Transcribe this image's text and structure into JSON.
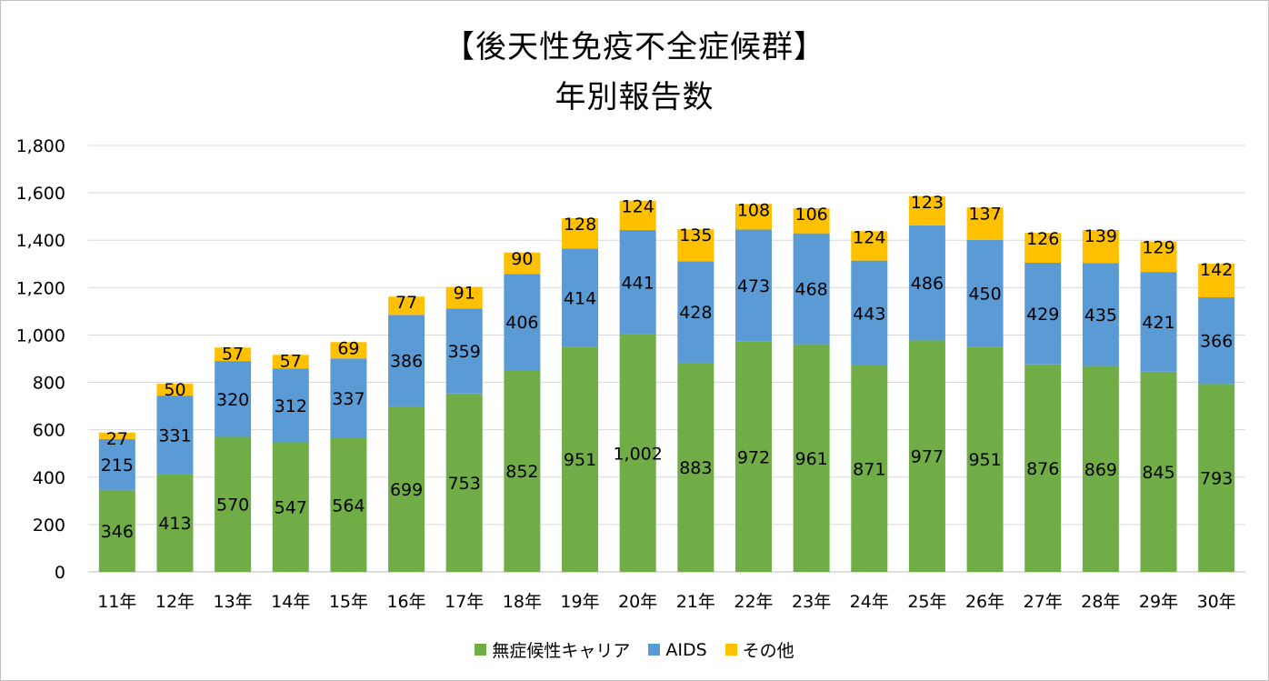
{
  "chart_data": {
    "type": "bar",
    "stacked": true,
    "title": [
      "【後天性免疫不全症候群】",
      "年別報告数"
    ],
    "categories": [
      "11年",
      "12年",
      "13年",
      "14年",
      "15年",
      "16年",
      "17年",
      "18年",
      "19年",
      "20年",
      "21年",
      "22年",
      "23年",
      "24年",
      "25年",
      "26年",
      "27年",
      "28年",
      "29年",
      "30年"
    ],
    "series": [
      {
        "name": "無症候性キャリア",
        "color": "#70ad47",
        "values": [
          346,
          413,
          570,
          547,
          564,
          699,
          753,
          852,
          951,
          1002,
          883,
          972,
          961,
          871,
          977,
          951,
          876,
          869,
          845,
          793
        ]
      },
      {
        "name": "AIDS",
        "color": "#5b9bd5",
        "values": [
          215,
          331,
          320,
          312,
          337,
          386,
          359,
          406,
          414,
          441,
          428,
          473,
          468,
          443,
          486,
          450,
          429,
          435,
          421,
          366
        ]
      },
      {
        "name": "その他",
        "color": "#ffc000",
        "values": [
          27,
          50,
          57,
          57,
          69,
          77,
          91,
          90,
          128,
          124,
          135,
          108,
          106,
          124,
          123,
          137,
          126,
          139,
          129,
          142
        ]
      }
    ],
    "y_ticks": [
      "0",
      "200",
      "400",
      "600",
      "800",
      "1,000",
      "1,200",
      "1,400",
      "1,600",
      "1,800"
    ],
    "ylim": [
      0,
      1800
    ],
    "grid": true,
    "legend_position": "bottom"
  }
}
